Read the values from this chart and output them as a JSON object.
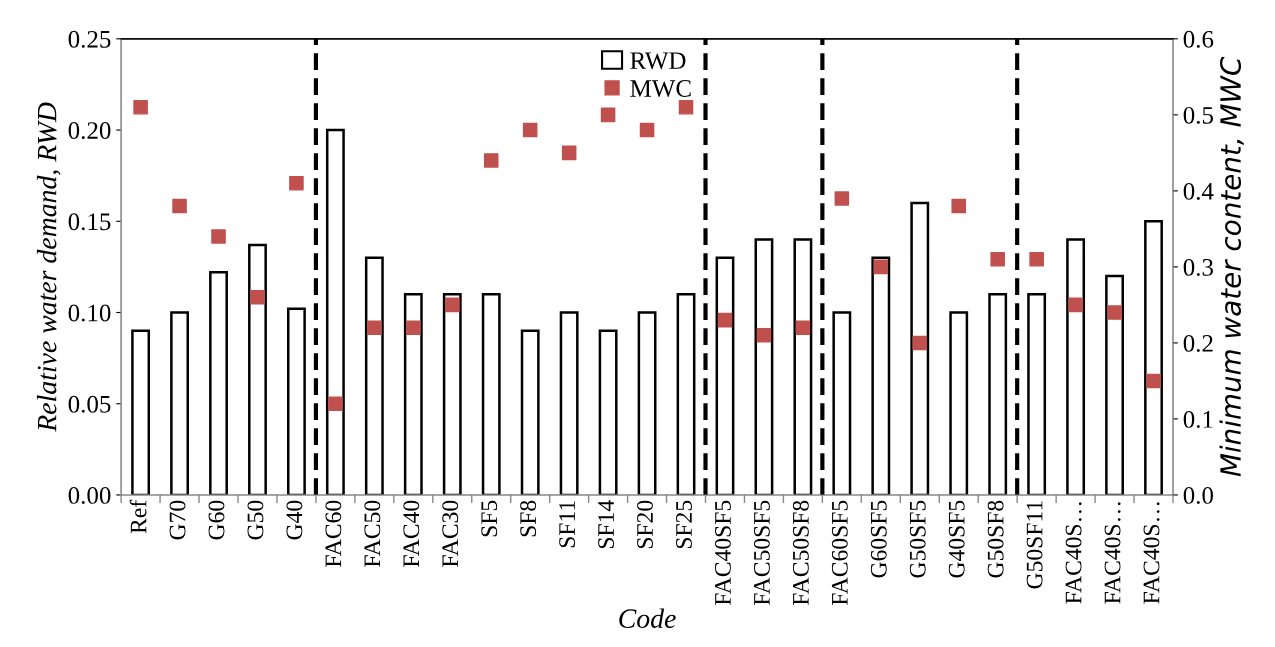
{
  "chart_data": {
    "type": "bar",
    "categories": [
      "Ref",
      "G70",
      "G60",
      "G50",
      "G40",
      "FAC60",
      "FAC50",
      "FAC40",
      "FAC30",
      "SF5",
      "SF8",
      "SF11",
      "SF14",
      "SF20",
      "SF25",
      "FAC40SF5",
      "FAC50SF5",
      "FAC50SF8",
      "FAC60SF5",
      "G60SF5",
      "G50SF5",
      "G40SF5",
      "G50SF8",
      "G50SF11",
      "FAC40S…",
      "FAC40S…",
      "FAC40S…"
    ],
    "xlabel": "Code",
    "ylabel": "Relative water demand, RWD",
    "y2label": "Minimum water content, MWC",
    "series": [
      {
        "name": "RWD",
        "color": "#ffffff",
        "values": [
          0.09,
          0.1,
          0.122,
          0.137,
          0.102,
          0.2,
          0.13,
          0.11,
          0.11,
          0.11,
          0.09,
          0.1,
          0.09,
          0.1,
          0.11,
          0.13,
          0.14,
          0.14,
          0.1,
          0.13,
          0.16,
          0.1,
          0.11,
          0.11,
          0.14,
          0.12,
          0.15
        ]
      },
      {
        "name": "MWC",
        "type": "scatter",
        "axis": "y2",
        "marker": "square",
        "color": "#c0504d",
        "values": [
          0.51,
          0.38,
          0.34,
          0.26,
          0.41,
          0.12,
          0.22,
          0.22,
          0.25,
          0.44,
          0.48,
          0.45,
          0.5,
          0.48,
          0.51,
          0.23,
          0.21,
          0.22,
          0.39,
          0.3,
          0.2,
          0.38,
          0.31,
          0.31,
          0.25,
          0.24,
          0.15
        ]
      }
    ],
    "ylim": [
      0,
      0.25
    ],
    "yticks": [
      {
        "value": 0,
        "label": "0.00"
      },
      {
        "value": 0.05,
        "label": "0.05"
      },
      {
        "value": 0.1,
        "label": "0.10"
      },
      {
        "value": 0.15,
        "label": "0.15"
      },
      {
        "value": 0.2,
        "label": "0.20"
      },
      {
        "value": 0.25,
        "label": "0.25"
      }
    ],
    "y2lim": [
      0,
      0.6
    ],
    "y2ticks": [
      {
        "value": 0,
        "label": "0.0"
      },
      {
        "value": 0.1,
        "label": "0.1"
      },
      {
        "value": 0.2,
        "label": "0.2"
      },
      {
        "value": 0.3,
        "label": "0.3"
      },
      {
        "value": 0.4,
        "label": "0.4"
      },
      {
        "value": 0.5,
        "label": "0.5"
      },
      {
        "value": 0.6,
        "label": "0.6"
      }
    ],
    "grid": false,
    "legend": "top"
  }
}
